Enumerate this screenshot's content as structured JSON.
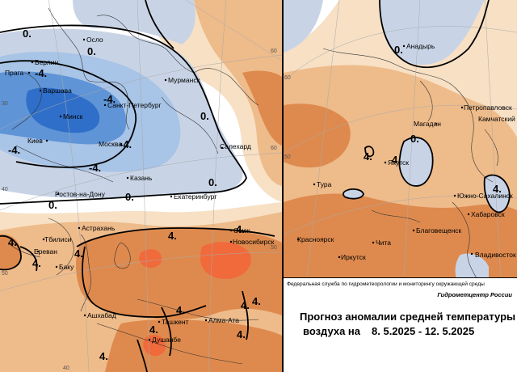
{
  "colors": {
    "cold_strong": "#2f6fc9",
    "cold_mid": "#5f94d6",
    "cold_light": "#a8c4e6",
    "cold_faint": "#c8d4e6",
    "neutral": "#ffffff",
    "warm_faint": "#f7e0c4",
    "warm_light": "#eebb8a",
    "warm_mid": "#de8a4e",
    "warm_strong": "#f06a3c"
  },
  "left_map": {
    "cities": [
      "Осло",
      "Берлин",
      "Прага",
      "Варшава",
      "Минск",
      "Киев",
      "Москва",
      "Санкт-Петербург",
      "Мурманск",
      "Салехард",
      "Казань",
      "Ростов-на-Дону",
      "Екатеринбург",
      "Астрахань",
      "Тбилиси",
      "Ереван",
      "Баку",
      "Омск",
      "Новосибирск",
      "Ашхабад",
      "Ташкент",
      "Алма-Ата",
      "Душанбе"
    ],
    "isolines": [
      "0.",
      "0.",
      "-4.",
      "-4.",
      "-4.",
      "-4.",
      "-4.",
      "0.",
      "0.",
      "0.",
      "0.",
      "4.",
      "4.",
      "4.",
      "4.",
      "4.",
      "4.",
      "4.",
      "4.",
      "4.",
      "4.",
      "4."
    ],
    "grid_labels": [
      "30",
      "40",
      "50",
      "60",
      "60",
      "50",
      "40"
    ]
  },
  "right_map": {
    "cities": [
      "Анадырь",
      "Петропавловск",
      "Камчатский",
      "Магадан",
      "Якутск",
      "Тура",
      "Южно-Сахалинск",
      "Хабаровск",
      "Благовещенск",
      "Красноярск",
      "Чита",
      "Иркутск",
      "Владивосток"
    ],
    "isolines": [
      "0.",
      "4.",
      "4.",
      "0.",
      "4."
    ],
    "grid_labels": [
      "60",
      "50"
    ]
  },
  "info": {
    "organization": "Федеральная служба по гидрометеорологии и мониторингу окружающей среды",
    "center": "Гидрометцентр России",
    "title_line1": "Прогноз аномалии средней температуры",
    "title_line2": "воздуха на",
    "period": "8. 5.2025 - 12. 5.2025"
  }
}
